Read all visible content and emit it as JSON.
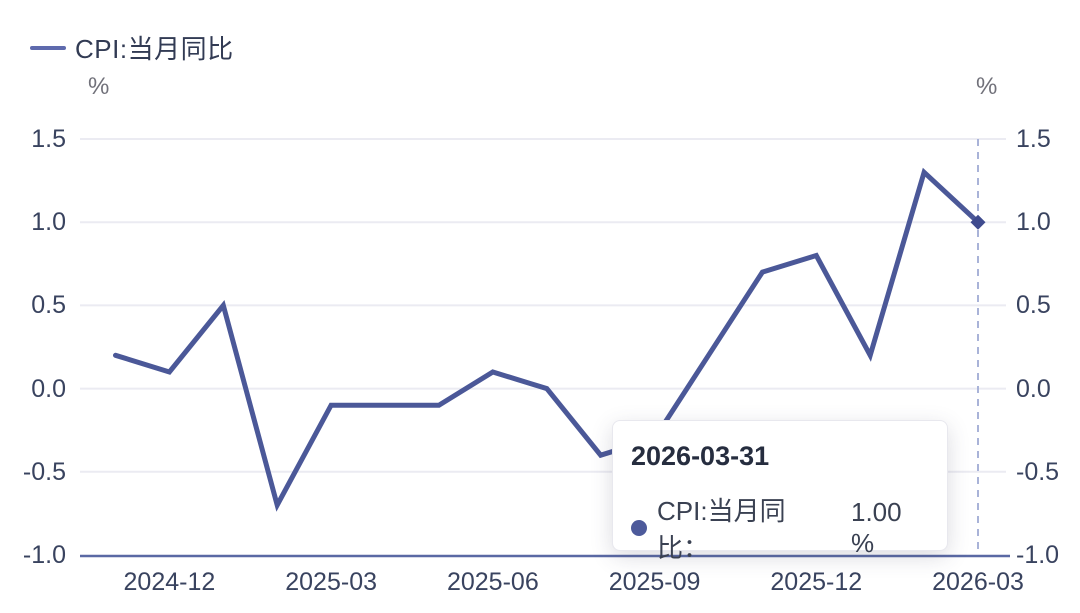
{
  "legend": {
    "label": "CPI:当月同比"
  },
  "units": {
    "left": "%",
    "right": "%"
  },
  "tooltip": {
    "title": "2026-03-31",
    "series_label": "CPI:当月同比：",
    "value": "1.00 %"
  },
  "colors": {
    "line": "#4b5898",
    "marker": "#3f4b8e",
    "legend_marker": "#5e6aad",
    "crosshair": "#a9b3d8",
    "grid": "#ebebf2",
    "axis_line": "#5a69a4",
    "tick_text": "#39435f",
    "unit_text": "#71717a",
    "legend_text": "#323b54",
    "tooltip_title": "#262d3f",
    "tooltip_text": "#3a4152",
    "tooltip_dot": "#4d5a9b"
  },
  "chart_data": {
    "type": "line",
    "title": "",
    "series": [
      {
        "name": "CPI:当月同比",
        "values": [
          0.2,
          0.1,
          0.5,
          -0.7,
          -0.1,
          -0.1,
          -0.1,
          0.1,
          0.0,
          -0.4,
          -0.3,
          0.2,
          0.7,
          0.8,
          0.2,
          1.3,
          1.0
        ]
      }
    ],
    "x": [
      "2024-11",
      "2024-12",
      "2025-01",
      "2025-02",
      "2025-03",
      "2025-04",
      "2025-05",
      "2025-06",
      "2025-07",
      "2025-08",
      "2025-09",
      "2025-10",
      "2025-11",
      "2025-12",
      "2026-01",
      "2026-02",
      "2026-03"
    ],
    "x_tick_labels": [
      "2024-12",
      "2025-03",
      "2025-06",
      "2025-09",
      "2025-12",
      "2026-03"
    ],
    "y_ticks": [
      1.5,
      1.0,
      0.5,
      0.0,
      -0.5,
      -1.0
    ],
    "y_tick_labels": [
      "1.5",
      "1.0",
      "0.5",
      "0.0",
      "-0.5",
      "-1.0"
    ],
    "ylim": [
      -1.0,
      1.5
    ],
    "ylabel_left": "%",
    "ylabel_right": "%",
    "grid": true,
    "legend_position": "top-left",
    "highlighted_point": {
      "x": "2026-03",
      "value": 1.0,
      "marker": "diamond",
      "crosshair": "dashed-vertical"
    }
  }
}
